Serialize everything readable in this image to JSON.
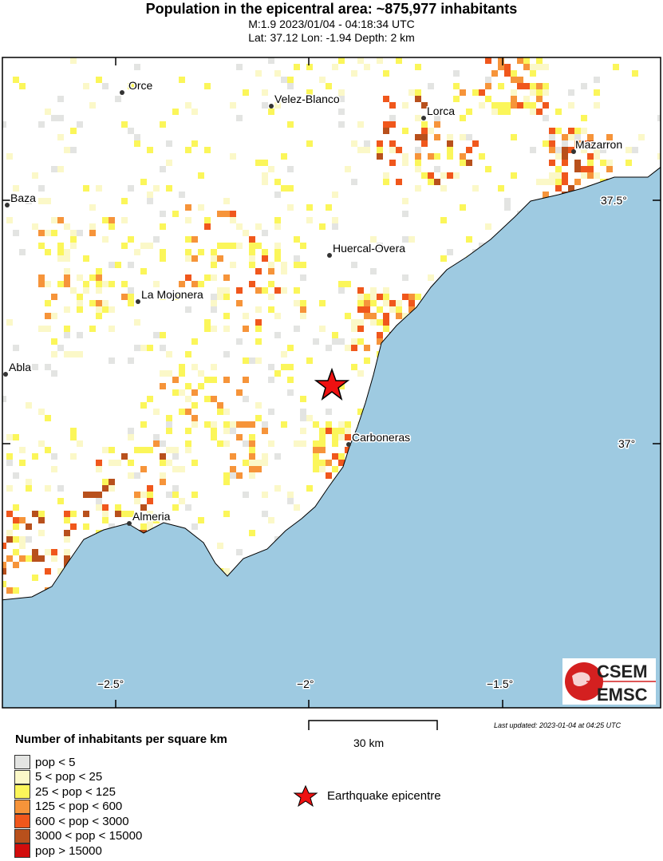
{
  "title": "Population in the epicentral area: ~875,977 inhabitants",
  "subtitle1": "M:1.9 2023/01/04 - 04:18:34 UTC",
  "subtitle2": "Lat: 37.12 Lon: -1.94 Depth: 2 km",
  "cities": [
    {
      "name": "Orce"
    },
    {
      "name": "Velez-Blanco"
    },
    {
      "name": "Lorca"
    },
    {
      "name": "Mazarron"
    },
    {
      "name": "Baza"
    },
    {
      "name": "Huercal-Overa"
    },
    {
      "name": "La Mojonera"
    },
    {
      "name": "Abla"
    },
    {
      "name": "Carboneras"
    },
    {
      "name": "Almeria"
    }
  ],
  "axes": {
    "lat_ticks": [
      "37.5°",
      "37°"
    ],
    "lon_ticks": [
      "−2.5°",
      "−2°",
      "−1.5°"
    ]
  },
  "legend": {
    "title": "Number of inhabitants per square km",
    "items": [
      {
        "label": "pop < 5",
        "color": "#e3e4e2"
      },
      {
        "label": "5 < pop < 25",
        "color": "#fbf8c8"
      },
      {
        "label": "25 < pop < 125",
        "color": "#fbf65a"
      },
      {
        "label": "125 < pop < 600",
        "color": "#f6943a"
      },
      {
        "label": "600 < pop < 3000",
        "color": "#f0571c"
      },
      {
        "label": "3000 < pop < 15000",
        "color": "#b8501c"
      },
      {
        "label": "pop > 15000",
        "color": "#d20d0d"
      }
    ]
  },
  "scale_label": "30 km",
  "epicentre_label": "Earthquake epicentre",
  "last_updated": "Last updated: 2023-01-04 at 04:25 UTC",
  "logo": {
    "top": "CSEM",
    "bottom": "EMSC"
  },
  "colors": {
    "sea": "#9ecae1",
    "epicentre": "#ee1111"
  }
}
